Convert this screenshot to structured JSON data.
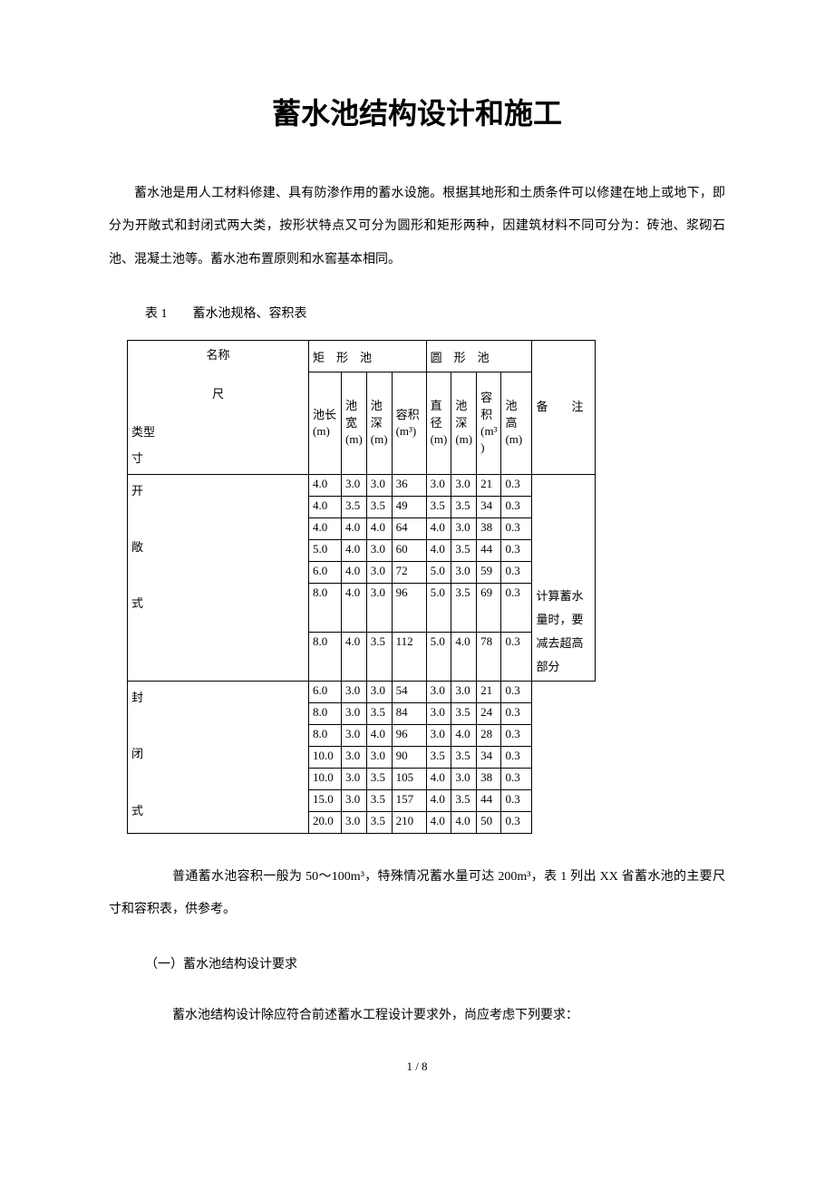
{
  "title": "蓄水池结构设计和施工",
  "intro_paragraph": "蓄水池是用人工材料修建、具有防渗作用的蓄水设施。根据其地形和土质条件可以修建在地上或地下，即分为开敞式和封闭式两大类，按形状特点又可分为圆形和矩形两种，因建筑材料不同可分为：砖池、浆砌石池、混凝土池等。蓄水池布置原则和水窖基本相同。",
  "table_caption": "表 1　　蓄水池规格、容积表",
  "table": {
    "name_label_top": "名称",
    "name_label_mid": "尺",
    "name_label_bot": "类型\n寸",
    "rect_header": "矩　形　池",
    "circ_header": "圆　形　池",
    "remark_header": "备　　注",
    "rect_cols": {
      "c1": "池长\n(m)",
      "c2": "池\n宽\n(m)",
      "c3": "池\n深\n(m)",
      "c4": "容积\n(m³)"
    },
    "circ_cols": {
      "c1": "直\n径\n(m)",
      "c2": "池\n深\n(m)",
      "c3": "容\n积\n(m³\n)",
      "c4": "池高\n(m)"
    },
    "type_open": "开\n\n敞\n\n式",
    "type_closed": "封\n\n闭\n\n式",
    "remark_text": "计算蓄水\n量时，要\n减去超高\n部分",
    "open_rows": [
      {
        "r1": "4.0",
        "r2": "3.0",
        "r3": "3.0",
        "r4": "36",
        "c1": "3.0",
        "c2": "3.0",
        "c3": "21",
        "c4": "0.3"
      },
      {
        "r1": "4.0",
        "r2": "3.5",
        "r3": "3.5",
        "r4": "49",
        "c1": "3.5",
        "c2": "3.5",
        "c3": "34",
        "c4": "0.3"
      },
      {
        "r1": "4.0",
        "r2": "4.0",
        "r3": "4.0",
        "r4": "64",
        "c1": "4.0",
        "c2": "3.0",
        "c3": "38",
        "c4": "0.3"
      },
      {
        "r1": "5.0",
        "r2": "4.0",
        "r3": "3.0",
        "r4": "60",
        "c1": "4.0",
        "c2": "3.5",
        "c3": "44",
        "c4": "0.3"
      },
      {
        "r1": "6.0",
        "r2": "4.0",
        "r3": "3.0",
        "r4": "72",
        "c1": "5.0",
        "c2": "3.0",
        "c3": "59",
        "c4": "0.3"
      },
      {
        "r1": "8.0",
        "r2": "4.0",
        "r3": "3.0",
        "r4": "96",
        "c1": "5.0",
        "c2": "3.5",
        "c3": "69",
        "c4": "0.3"
      },
      {
        "r1": "8.0",
        "r2": "4.0",
        "r3": "3.5",
        "r4": "112",
        "c1": "5.0",
        "c2": "4.0",
        "c3": "78",
        "c4": "0.3"
      }
    ],
    "closed_rows": [
      {
        "r1": "6.0",
        "r2": "3.0",
        "r3": "3.0",
        "r4": "54",
        "c1": "3.0",
        "c2": "3.0",
        "c3": "21",
        "c4": "0.3"
      },
      {
        "r1": "8.0",
        "r2": "3.0",
        "r3": "3.5",
        "r4": "84",
        "c1": "3.0",
        "c2": "3.5",
        "c3": "24",
        "c4": "0.3"
      },
      {
        "r1": "8.0",
        "r2": "3.0",
        "r3": "4.0",
        "r4": "96",
        "c1": "3.0",
        "c2": "4.0",
        "c3": "28",
        "c4": "0.3"
      },
      {
        "r1": "10.0",
        "r2": "3.0",
        "r3": "3.0",
        "r4": "90",
        "c1": "3.5",
        "c2": "3.5",
        "c3": "34",
        "c4": "0.3"
      },
      {
        "r1": "10.0",
        "r2": "3.0",
        "r3": "3.5",
        "r4": "105",
        "c1": "4.0",
        "c2": "3.0",
        "c3": "38",
        "c4": "0.3"
      },
      {
        "r1": "15.0",
        "r2": "3.0",
        "r3": "3.5",
        "r4": "157",
        "c1": "4.0",
        "c2": "3.5",
        "c3": "44",
        "c4": "0.3"
      },
      {
        "r1": "20.0",
        "r2": "3.0",
        "r3": "3.5",
        "r4": "210",
        "c1": "4.0",
        "c2": "4.0",
        "c3": "50",
        "c4": "0.3"
      }
    ]
  },
  "after_table_paragraph": "普通蓄水池容积一般为 50～100m³，特殊情况蓄水量可达 200m³，表 1 列出 XX 省蓄水池的主要尺寸和容积表，供参考。",
  "section_heading": "（一）蓄水池结构设计要求",
  "section_body": "蓄水池结构设计除应符合前述蓄水工程设计要求外，尚应考虑下列要求：",
  "page_num": "1 / 8"
}
